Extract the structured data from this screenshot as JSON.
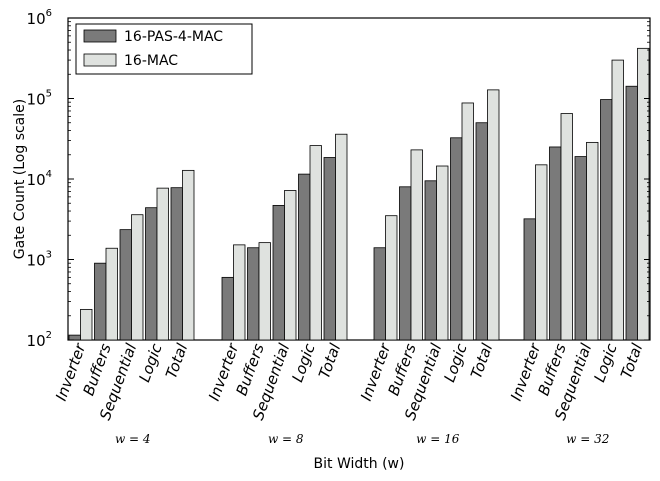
{
  "chart_data": {
    "type": "bar",
    "ylabel": "Gate Count (Log scale)",
    "xlabel": "Bit Width (w)",
    "yscale": "log",
    "ylim": [
      100,
      1000000
    ],
    "yticks": [
      {
        "value": 100,
        "base": "10",
        "exp": "2"
      },
      {
        "value": 1000,
        "base": "10",
        "exp": "3"
      },
      {
        "value": 10000,
        "base": "10",
        "exp": "4"
      },
      {
        "value": 100000,
        "base": "10",
        "exp": "5"
      },
      {
        "value": 1000000,
        "base": "10",
        "exp": "6"
      }
    ],
    "categories": [
      "Inverter",
      "Buffers",
      "Sequential",
      "Logic",
      "Total"
    ],
    "groups": [
      {
        "label": "w = 4",
        "values": {
          "16-PAS-4-MAC": [
            115,
            900,
            2350,
            4400,
            7800
          ],
          "16-MAC": [
            240,
            1380,
            3600,
            7700,
            12800
          ]
        }
      },
      {
        "label": "w = 8",
        "values": {
          "16-PAS-4-MAC": [
            600,
            1400,
            4700,
            11500,
            18500
          ],
          "16-MAC": [
            1520,
            1620,
            7200,
            26000,
            36000
          ]
        }
      },
      {
        "label": "w = 16",
        "values": {
          "16-PAS-4-MAC": [
            1400,
            8000,
            9500,
            32500,
            50000
          ],
          "16-MAC": [
            3500,
            23000,
            14500,
            88000,
            128000
          ]
        }
      },
      {
        "label": "w = 32",
        "values": {
          "16-PAS-4-MAC": [
            3200,
            25000,
            19000,
            97000,
            142000
          ],
          "16-MAC": [
            15000,
            65000,
            28500,
            300000,
            420000
          ]
        }
      }
    ],
    "series": [
      {
        "name": "16-PAS-4-MAC",
        "color": "#7a7a7a"
      },
      {
        "name": "16-MAC",
        "color": "#dfe2df"
      }
    ],
    "legend_position": "top-left",
    "grid": false
  }
}
